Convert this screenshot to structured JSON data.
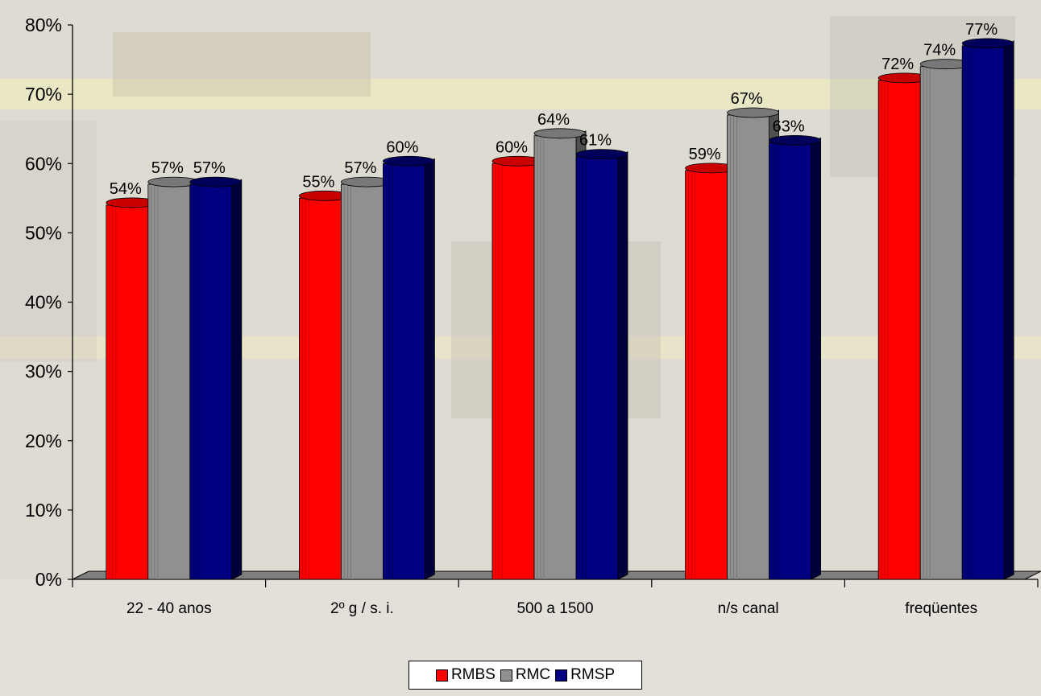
{
  "chart_data": {
    "type": "bar",
    "title": "",
    "xlabel": "",
    "ylabel": "",
    "ylim": [
      0,
      0.8
    ],
    "y_ticks": [
      "0%",
      "10%",
      "20%",
      "30%",
      "40%",
      "50%",
      "60%",
      "70%",
      "80%"
    ],
    "categories": [
      "22 - 40 anos",
      "2º g / s. i.",
      "500 a 1500",
      "n/s canal",
      "freqüentes"
    ],
    "series": [
      {
        "name": "RMBS",
        "color": "#ff0000",
        "values": [
          0.54,
          0.55,
          0.6,
          0.59,
          0.72
        ],
        "labels": [
          "54%",
          "55%",
          "60%",
          "59%",
          "72%"
        ]
      },
      {
        "name": "RMC",
        "color": "#909090",
        "values": [
          0.57,
          0.57,
          0.64,
          0.67,
          0.74
        ],
        "labels": [
          "57%",
          "57%",
          "64%",
          "67%",
          "74%"
        ]
      },
      {
        "name": "RMSP",
        "color": "#000080",
        "values": [
          0.57,
          0.6,
          0.61,
          0.63,
          0.77
        ],
        "labels": [
          "57%",
          "60%",
          "61%",
          "63%",
          "77%"
        ]
      }
    ],
    "legend_position": "bottom",
    "grid": false
  }
}
